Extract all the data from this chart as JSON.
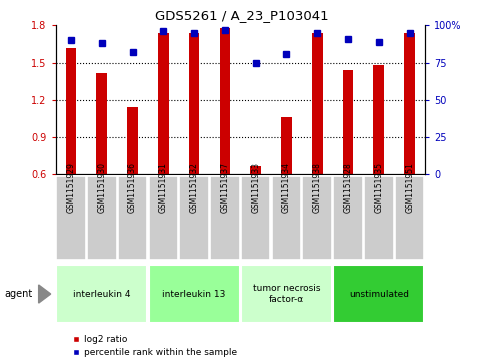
{
  "title": "GDS5261 / A_23_P103041",
  "samples": [
    "GSM1151929",
    "GSM1151930",
    "GSM1151936",
    "GSM1151931",
    "GSM1151932",
    "GSM1151937",
    "GSM1151933",
    "GSM1151934",
    "GSM1151938",
    "GSM1151928",
    "GSM1151935",
    "GSM1151951"
  ],
  "log2_ratio": [
    1.62,
    1.42,
    1.14,
    1.74,
    1.74,
    1.78,
    0.67,
    1.06,
    1.74,
    1.44,
    1.48,
    1.74
  ],
  "percentile_rank": [
    90,
    88,
    82,
    96,
    95,
    97,
    75,
    81,
    95,
    91,
    89,
    95
  ],
  "ylim_left": [
    0.6,
    1.8
  ],
  "ylim_right": [
    0,
    100
  ],
  "yticks_left": [
    0.6,
    0.9,
    1.2,
    1.5,
    1.8
  ],
  "yticks_right": [
    0,
    25,
    50,
    75,
    100
  ],
  "bar_color": "#cc0000",
  "dot_color": "#0000bb",
  "bar_width": 0.35,
  "groups": [
    {
      "label": "interleukin 4",
      "start": 0,
      "end": 3,
      "color": "#ccffcc"
    },
    {
      "label": "interleukin 13",
      "start": 3,
      "end": 6,
      "color": "#99ff99"
    },
    {
      "label": "tumor necrosis\nfactor-α",
      "start": 6,
      "end": 9,
      "color": "#ccffcc"
    },
    {
      "label": "unstimulated",
      "start": 9,
      "end": 12,
      "color": "#33cc33"
    }
  ],
  "legend_label_log2": "log2 ratio",
  "legend_label_pct": "percentile rank within the sample",
  "agent_label": "agent",
  "grid_lines": [
    0.9,
    1.2,
    1.5
  ],
  "sample_box_color": "#cccccc",
  "plot_bg": "#ffffff",
  "left_axis_color": "#cc0000",
  "right_axis_color": "#0000bb",
  "n_samples": 12
}
